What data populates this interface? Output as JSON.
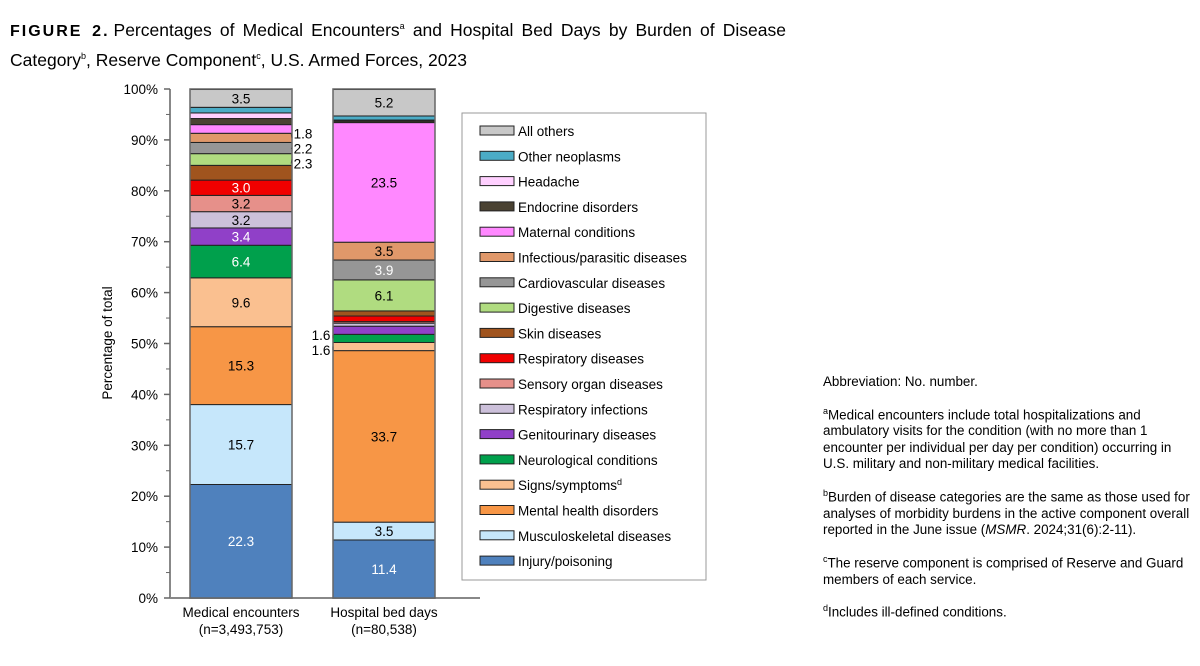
{
  "title": {
    "figure": "FIGURE 2.",
    "part1": "Percentages of Medical Encounters",
    "sup_a": "a",
    "part2": " and Hospital Bed Days by Burden of Disease Category",
    "sup_b": "b",
    "part3": ", Reserve Component",
    "sup_c": "c",
    "part4": ", U.S. Armed Forces, 2023"
  },
  "chart_data": {
    "type": "bar",
    "stacked": true,
    "ylabel": "Percentage of total",
    "ylim": [
      0,
      100
    ],
    "yticks": [
      "0%",
      "10%",
      "20%",
      "30%",
      "40%",
      "50%",
      "60%",
      "70%",
      "80%",
      "90%",
      "100%"
    ],
    "categories": [
      {
        "line1": "Medical encounters",
        "line2": "(n=3,493,753)"
      },
      {
        "line1": "Hospital bed days",
        "line2": "(n=80,538)"
      }
    ],
    "legend_position": "right",
    "series": [
      {
        "name": "Injury/poisoning",
        "color": "#4f81bd",
        "values": [
          22.3,
          11.4
        ],
        "labels": [
          "22.3",
          "11.4"
        ],
        "label_color": "#fff"
      },
      {
        "name": "Musculoskeletal diseases",
        "color": "#c6e7fb",
        "values": [
          15.7,
          3.5
        ],
        "labels": [
          "15.7",
          "3.5"
        ]
      },
      {
        "name": "Mental health disorders",
        "color": "#f79646",
        "values": [
          15.3,
          33.7
        ],
        "labels": [
          "15.3",
          "33.7"
        ]
      },
      {
        "name": "Signs/symptoms",
        "sup": "d",
        "color": "#fac090",
        "values": [
          9.6,
          1.6
        ],
        "labels": [
          "9.6",
          "1.6"
        ]
      },
      {
        "name": "Neurological conditions",
        "color": "#00a04c",
        "values": [
          6.4,
          1.6
        ],
        "labels": [
          "6.4",
          "1.6"
        ],
        "label_color": "#fff"
      },
      {
        "name": "Genitourinary diseases",
        "color": "#9040c8",
        "values": [
          3.4,
          1.6
        ],
        "labels": [
          "3.4",
          ""
        ],
        "label_color": "#fff"
      },
      {
        "name": "Respiratory infections",
        "color": "#ccc0da",
        "values": [
          3.2,
          0.6
        ],
        "labels": [
          "3.2",
          ""
        ]
      },
      {
        "name": "Sensory organ diseases",
        "color": "#e6908a",
        "values": [
          3.2,
          0.3
        ],
        "labels": [
          "3.2",
          ""
        ]
      },
      {
        "name": "Respiratory diseases",
        "color": "#f00000",
        "values": [
          3.0,
          1.1
        ],
        "labels": [
          "3.0",
          ""
        ],
        "label_color": "#fff"
      },
      {
        "name": "Skin diseases",
        "color": "#a0541e",
        "values": [
          2.9,
          1.0
        ],
        "labels": [
          "",
          ""
        ]
      },
      {
        "name": "Digestive diseases",
        "color": "#b0dc80",
        "values": [
          2.3,
          6.1
        ],
        "labels": [
          "2.3",
          "6.1"
        ]
      },
      {
        "name": "Cardiovascular diseases",
        "color": "#969696",
        "values": [
          2.2,
          3.9
        ],
        "labels": [
          "2.2",
          "3.9"
        ],
        "label_color": "#fff"
      },
      {
        "name": "Infectious/parasitic diseases",
        "color": "#e0986a",
        "values": [
          1.8,
          3.5
        ],
        "labels": [
          "1.8",
          "3.5"
        ]
      },
      {
        "name": "Maternal conditions",
        "color": "#ff88ff",
        "values": [
          1.7,
          23.5
        ],
        "labels": [
          "",
          "23.5"
        ]
      },
      {
        "name": "Endocrine disorders",
        "color": "#4a4232",
        "values": [
          1.2,
          0.3
        ],
        "labels": [
          "",
          ""
        ]
      },
      {
        "name": "Headache",
        "color": "#ffd0ff",
        "values": [
          1.1,
          0.2
        ],
        "labels": [
          "",
          ""
        ]
      },
      {
        "name": "Other neoplasms",
        "color": "#4bacc6",
        "values": [
          1.1,
          0.8
        ],
        "labels": [
          "",
          ""
        ]
      },
      {
        "name": "All others",
        "color": "#c8c8c8",
        "values": [
          3.5,
          5.2
        ],
        "labels": [
          "3.5",
          "5.2"
        ]
      }
    ]
  },
  "notes": {
    "abbrev": "Abbreviation: No. number.",
    "a_sup": "a",
    "a": "Medical encounters include total hospitalizations and ambulatory visits for the condition (with no more than 1 encounter per individual per day per condition) occurring in U.S. military and non-military medical facilities.",
    "b_sup": "b",
    "b1": "Burden of disease categories are the same as those used for analyses of morbidity burdens in the active component overall reported in the June issue (",
    "b_journal": "MSMR",
    "b2": ". 2024;31(6):2-11).",
    "c_sup": "c",
    "c": "The reserve component is comprised of Reserve and Guard members of each service.",
    "d_sup": "d",
    "d": "Includes ill-defined conditions."
  }
}
